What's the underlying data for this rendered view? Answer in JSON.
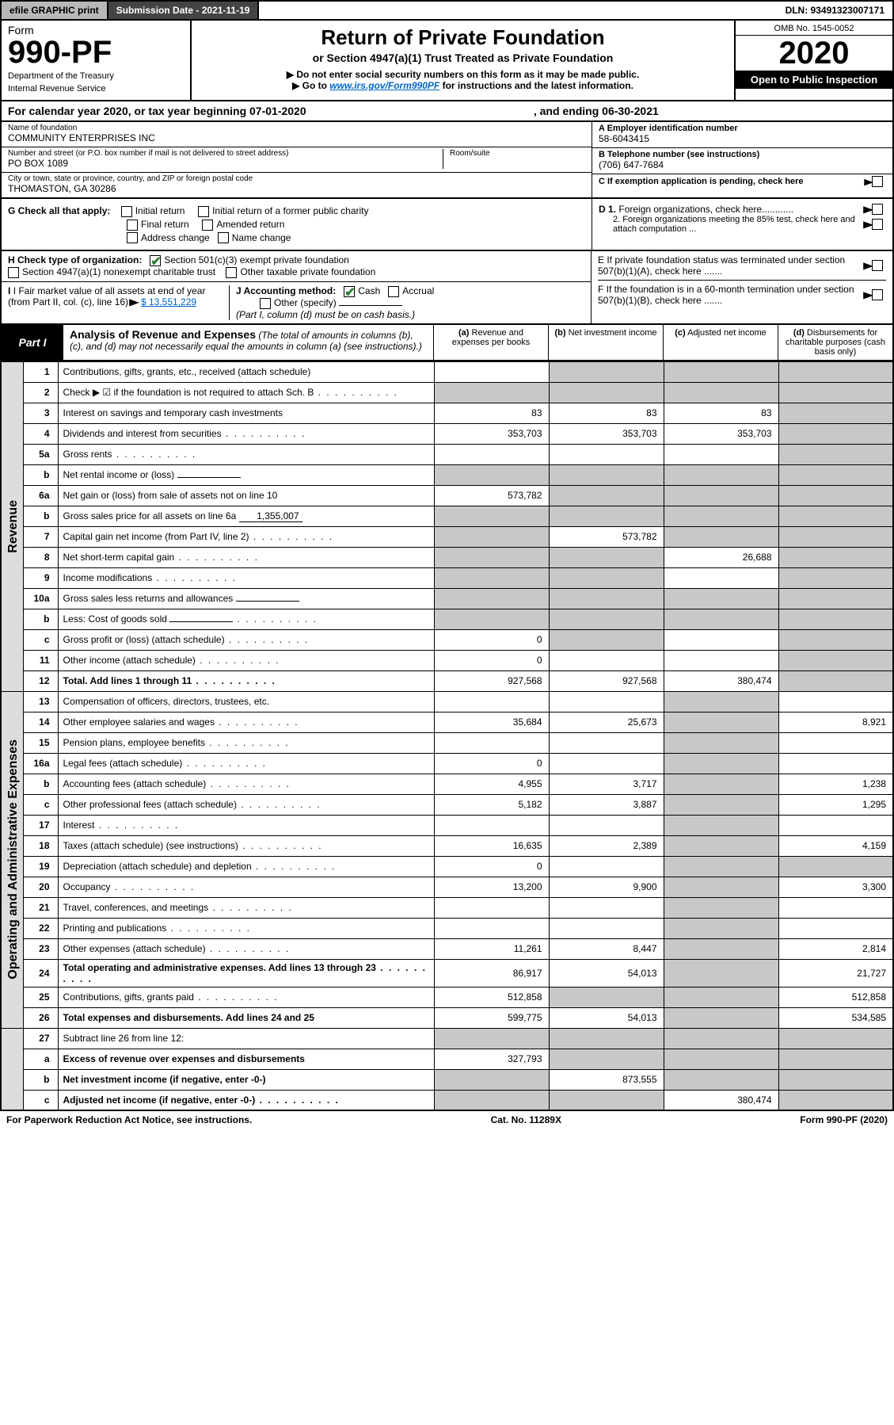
{
  "top": {
    "efile": "efile GRAPHIC print",
    "submission": "Submission Date - 2021-11-19",
    "dln": "DLN: 93491323007171"
  },
  "header": {
    "form_word": "Form",
    "form_number": "990-PF",
    "dept1": "Department of the Treasury",
    "dept2": "Internal Revenue Service",
    "title": "Return of Private Foundation",
    "subtitle": "or Section 4947(a)(1) Trust Treated as Private Foundation",
    "note1": "▶ Do not enter social security numbers on this form as it may be made public.",
    "note2_pre": "▶ Go to ",
    "note2_link": "www.irs.gov/Form990PF",
    "note2_post": " for instructions and the latest information.",
    "omb": "OMB No. 1545-0052",
    "year": "2020",
    "open": "Open to Public Inspection"
  },
  "calyear": {
    "pre": "For calendar year 2020, or tax year beginning 07-01-2020",
    "mid": ", and ending 06-30-2021"
  },
  "entity": {
    "name_label": "Name of foundation",
    "name": "COMMUNITY ENTERPRISES INC",
    "addr_label": "Number and street (or P.O. box number if mail is not delivered to street address)",
    "addr": "PO BOX 1089",
    "room_label": "Room/suite",
    "city_label": "City or town, state or province, country, and ZIP or foreign postal code",
    "city": "THOMASTON, GA  30286",
    "a_label": "A Employer identification number",
    "a_val": "58-6043415",
    "b_label": "B Telephone number (see instructions)",
    "b_val": "(706) 647-7684",
    "c_label": "C If exemption application is pending, check here"
  },
  "checks": {
    "g_label": "G Check all that apply:",
    "g_opts": [
      "Initial return",
      "Initial return of a former public charity",
      "Final return",
      "Amended return",
      "Address change",
      "Name change"
    ],
    "h_label": "H Check type of organization:",
    "h1": "Section 501(c)(3) exempt private foundation",
    "h2": "Section 4947(a)(1) nonexempt charitable trust",
    "h3": "Other taxable private foundation",
    "i_label": "I Fair market value of all assets at end of year (from Part II, col. (c), line 16)",
    "i_val": "$  13,551,229",
    "j_label": "J Accounting method:",
    "j_cash": "Cash",
    "j_accrual": "Accrual",
    "j_other": "Other (specify)",
    "j_note": "(Part I, column (d) must be on cash basis.)",
    "d1": "D 1. Foreign organizations, check here............",
    "d2": "2. Foreign organizations meeting the 85% test, check here and attach computation ...",
    "e": "E  If private foundation status was terminated under section 507(b)(1)(A), check here .......",
    "f": "F  If the foundation is in a 60-month termination under section 507(b)(1)(B), check here .......",
    "arrow": "▶"
  },
  "part1": {
    "label": "Part I",
    "title": "Analysis of Revenue and Expenses",
    "note": " (The total of amounts in columns (b), (c), and (d) may not necessarily equal the amounts in column (a) (see instructions).)",
    "col_a": "(a)  Revenue and expenses per books",
    "col_b": "(b)  Net investment income",
    "col_c": "(c)  Adjusted net income",
    "col_d": "(d)  Disbursements for charitable purposes (cash basis only)"
  },
  "sidebars": {
    "revenue": "Revenue",
    "expenses": "Operating and Administrative Expenses"
  },
  "rows": [
    {
      "n": "1",
      "d": "Contributions, gifts, grants, etc., received (attach schedule)",
      "a": "",
      "b": "g",
      "c": "g",
      "dd": "g"
    },
    {
      "n": "2",
      "d": "Check ▶ ☑ if the foundation is not required to attach Sch. B",
      "a": "g",
      "b": "g",
      "c": "g",
      "dd": "g",
      "dots": true
    },
    {
      "n": "3",
      "d": "Interest on savings and temporary cash investments",
      "a": "83",
      "b": "83",
      "c": "83",
      "dd": "g"
    },
    {
      "n": "4",
      "d": "Dividends and interest from securities",
      "a": "353,703",
      "b": "353,703",
      "c": "353,703",
      "dd": "g",
      "dots": true
    },
    {
      "n": "5a",
      "d": "Gross rents",
      "a": "",
      "b": "",
      "c": "",
      "dd": "g",
      "dots": true
    },
    {
      "n": "b",
      "d": "Net rental income or (loss)",
      "a": "g",
      "b": "g",
      "c": "g",
      "dd": "g",
      "inline": ""
    },
    {
      "n": "6a",
      "d": "Net gain or (loss) from sale of assets not on line 10",
      "a": "573,782",
      "b": "g",
      "c": "g",
      "dd": "g"
    },
    {
      "n": "b",
      "d": "Gross sales price for all assets on line 6a",
      "a": "g",
      "b": "g",
      "c": "g",
      "dd": "g",
      "inline": "1,355,007"
    },
    {
      "n": "7",
      "d": "Capital gain net income (from Part IV, line 2)",
      "a": "g",
      "b": "573,782",
      "c": "g",
      "dd": "g",
      "dots": true
    },
    {
      "n": "8",
      "d": "Net short-term capital gain",
      "a": "g",
      "b": "g",
      "c": "26,688",
      "dd": "g",
      "dots": true
    },
    {
      "n": "9",
      "d": "Income modifications",
      "a": "g",
      "b": "g",
      "c": "",
      "dd": "g",
      "dots": true
    },
    {
      "n": "10a",
      "d": "Gross sales less returns and allowances",
      "a": "g",
      "b": "g",
      "c": "g",
      "dd": "g",
      "inline": ""
    },
    {
      "n": "b",
      "d": "Less: Cost of goods sold",
      "a": "g",
      "b": "g",
      "c": "g",
      "dd": "g",
      "inline": "",
      "dots": true
    },
    {
      "n": "c",
      "d": "Gross profit or (loss) (attach schedule)",
      "a": "0",
      "b": "g",
      "c": "",
      "dd": "g",
      "dots": true
    },
    {
      "n": "11",
      "d": "Other income (attach schedule)",
      "a": "0",
      "b": "",
      "c": "",
      "dd": "g",
      "dots": true
    },
    {
      "n": "12",
      "d": "Total. Add lines 1 through 11",
      "a": "927,568",
      "b": "927,568",
      "c": "380,474",
      "dd": "g",
      "bold": true,
      "dots": true
    },
    {
      "n": "13",
      "d": "Compensation of officers, directors, trustees, etc.",
      "a": "",
      "b": "",
      "c": "g",
      "dd": ""
    },
    {
      "n": "14",
      "d": "Other employee salaries and wages",
      "a": "35,684",
      "b": "25,673",
      "c": "g",
      "dd": "8,921",
      "dots": true
    },
    {
      "n": "15",
      "d": "Pension plans, employee benefits",
      "a": "",
      "b": "",
      "c": "g",
      "dd": "",
      "dots": true
    },
    {
      "n": "16a",
      "d": "Legal fees (attach schedule)",
      "a": "0",
      "b": "",
      "c": "g",
      "dd": "",
      "dots": true
    },
    {
      "n": "b",
      "d": "Accounting fees (attach schedule)",
      "a": "4,955",
      "b": "3,717",
      "c": "g",
      "dd": "1,238",
      "dots": true
    },
    {
      "n": "c",
      "d": "Other professional fees (attach schedule)",
      "a": "5,182",
      "b": "3,887",
      "c": "g",
      "dd": "1,295",
      "dots": true
    },
    {
      "n": "17",
      "d": "Interest",
      "a": "",
      "b": "",
      "c": "g",
      "dd": "",
      "dots": true
    },
    {
      "n": "18",
      "d": "Taxes (attach schedule) (see instructions)",
      "a": "16,635",
      "b": "2,389",
      "c": "g",
      "dd": "4,159",
      "dots": true
    },
    {
      "n": "19",
      "d": "Depreciation (attach schedule) and depletion",
      "a": "0",
      "b": "",
      "c": "g",
      "dd": "g",
      "dots": true
    },
    {
      "n": "20",
      "d": "Occupancy",
      "a": "13,200",
      "b": "9,900",
      "c": "g",
      "dd": "3,300",
      "dots": true
    },
    {
      "n": "21",
      "d": "Travel, conferences, and meetings",
      "a": "",
      "b": "",
      "c": "g",
      "dd": "",
      "dots": true
    },
    {
      "n": "22",
      "d": "Printing and publications",
      "a": "",
      "b": "",
      "c": "g",
      "dd": "",
      "dots": true
    },
    {
      "n": "23",
      "d": "Other expenses (attach schedule)",
      "a": "11,261",
      "b": "8,447",
      "c": "g",
      "dd": "2,814",
      "dots": true
    },
    {
      "n": "24",
      "d": "Total operating and administrative expenses. Add lines 13 through 23",
      "a": "86,917",
      "b": "54,013",
      "c": "g",
      "dd": "21,727",
      "bold": true,
      "dots": true
    },
    {
      "n": "25",
      "d": "Contributions, gifts, grants paid",
      "a": "512,858",
      "b": "g",
      "c": "g",
      "dd": "512,858",
      "dots": true
    },
    {
      "n": "26",
      "d": "Total expenses and disbursements. Add lines 24 and 25",
      "a": "599,775",
      "b": "54,013",
      "c": "g",
      "dd": "534,585",
      "bold": true
    },
    {
      "n": "27",
      "d": "Subtract line 26 from line 12:",
      "a": "g",
      "b": "g",
      "c": "g",
      "dd": "g"
    },
    {
      "n": "a",
      "d": "Excess of revenue over expenses and disbursements",
      "a": "327,793",
      "b": "g",
      "c": "g",
      "dd": "g",
      "bold": true
    },
    {
      "n": "b",
      "d": "Net investment income (if negative, enter -0-)",
      "a": "g",
      "b": "873,555",
      "c": "g",
      "dd": "g",
      "bold": true
    },
    {
      "n": "c",
      "d": "Adjusted net income (if negative, enter -0-)",
      "a": "g",
      "b": "g",
      "c": "380,474",
      "dd": "g",
      "bold": true,
      "dots": true
    }
  ],
  "footer": {
    "left": "For Paperwork Reduction Act Notice, see instructions.",
    "mid": "Cat. No. 11289X",
    "right": "Form 990-PF (2020)"
  }
}
